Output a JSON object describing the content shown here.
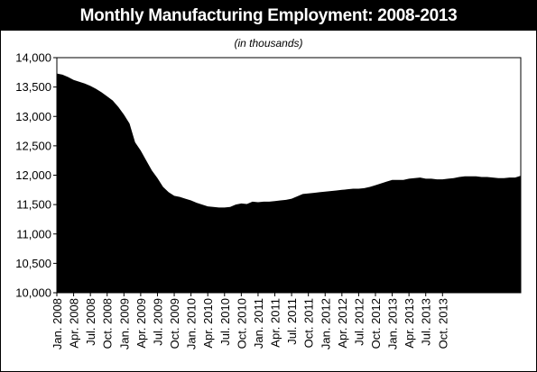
{
  "chart_data": {
    "type": "area",
    "title": "Monthly Manufacturing Employment: 2008-2013",
    "subtitle": "(in thousands)",
    "xlabel": "",
    "ylabel": "",
    "ylim": [
      10000,
      14000
    ],
    "y_ticks": [
      "14,000",
      "13,500",
      "13,000",
      "12,500",
      "12,000",
      "11,500",
      "11,000",
      "10,500",
      "10,000"
    ],
    "y_tick_values": [
      14000,
      13500,
      13000,
      12500,
      12000,
      11500,
      11000,
      10500,
      10000
    ],
    "x_ticks": [
      "Jan. 2008",
      "Apr. 2008",
      "Jul. 2008",
      "Oct. 2008",
      "Jan. 2009",
      "Apr. 2009",
      "Jul. 2009",
      "Oct. 2009",
      "Jan. 2010",
      "Apr. 2010",
      "Jul. 2010",
      "Oct. 2010",
      "Jan. 2011",
      "Apr. 2011",
      "Jul. 2011",
      "Oct. 2011",
      "Jan. 2012",
      "Apr. 2012",
      "Jul. 2012",
      "Oct. 2012",
      "Jan. 2013",
      "Apr. 2013",
      "Jul. 2013",
      "Oct. 2013"
    ],
    "grid": false,
    "fill_color": "#000000",
    "series": [
      {
        "values": [
          13730,
          13710,
          13670,
          13620,
          13590,
          13560,
          13520,
          13470,
          13410,
          13340,
          13270,
          13160,
          13030,
          12880,
          12560,
          12420,
          12250,
          12080,
          11950,
          11800,
          11710,
          11650,
          11630,
          11600,
          11570,
          11530,
          11500,
          11470,
          11460,
          11450,
          11450,
          11460,
          11500,
          11520,
          11510,
          11550,
          11540,
          11550,
          11550,
          11560,
          11570,
          11580,
          11600,
          11640,
          11680,
          11690,
          11700,
          11710,
          11720,
          11730,
          11740,
          11750,
          11760,
          11770,
          11770,
          11780,
          11800,
          11830,
          11860,
          11890,
          11920,
          11920,
          11920,
          11940,
          11950,
          11960,
          11940,
          11940,
          11930,
          11930,
          11940,
          11950,
          11970,
          11980,
          11980,
          11980,
          11970,
          11970,
          11960,
          11950,
          11950,
          11960,
          11960,
          11990
        ]
      }
    ]
  }
}
